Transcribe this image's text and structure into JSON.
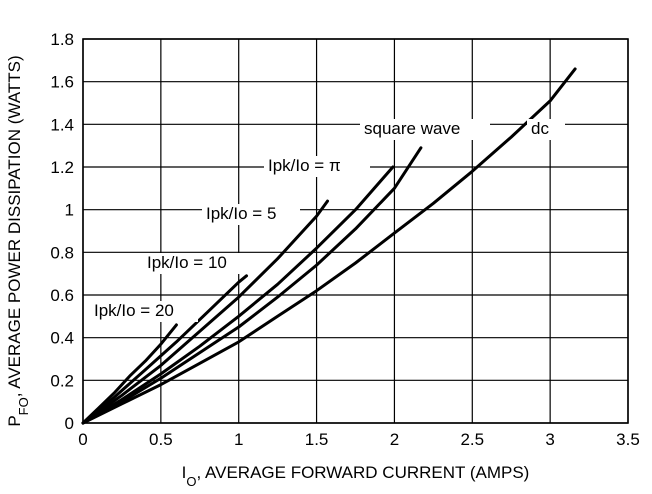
{
  "chart_data": {
    "type": "line",
    "title": "",
    "xlabel": {
      "main": "I",
      "sub": "O",
      "rest": ", AVERAGE FORWARD CURRENT (AMPS)"
    },
    "ylabel": {
      "main": "P",
      "sub": "FO",
      "rest": ", AVERAGE POWER DISSIPATION (WATTS)"
    },
    "xlim": [
      0,
      3.5
    ],
    "ylim": [
      0,
      1.8
    ],
    "xticks": [
      0,
      0.5,
      1,
      1.5,
      2,
      2.5,
      3,
      3.5
    ],
    "xtick_labels": [
      "0",
      "0.5",
      "1",
      "1.5",
      "2",
      "2.5",
      "3",
      "3.5"
    ],
    "yticks": [
      0,
      0.2,
      0.4,
      0.6,
      0.8,
      1.0,
      1.2,
      1.4,
      1.6,
      1.8
    ],
    "ytick_labels": [
      "0",
      "0.2",
      "0.4",
      "0.6",
      "0.8",
      "1",
      "1.2",
      "1.4",
      "1.6",
      "1.8"
    ],
    "grid": true,
    "series": [
      {
        "name": "Ipk/Io = 20",
        "x": [
          0,
          0.1,
          0.2,
          0.3,
          0.4,
          0.5,
          0.6
        ],
        "y": [
          0,
          0.07,
          0.14,
          0.22,
          0.29,
          0.37,
          0.46
        ]
      },
      {
        "name": "Ipk/Io = 10",
        "x": [
          0,
          0.2,
          0.4,
          0.6,
          0.8,
          1.0,
          1.05
        ],
        "y": [
          0,
          0.12,
          0.25,
          0.38,
          0.52,
          0.66,
          0.69
        ]
      },
      {
        "name": "Ipk/Io = 5",
        "x": [
          0,
          0.25,
          0.5,
          0.75,
          1.0,
          1.25,
          1.5,
          1.57
        ],
        "y": [
          0,
          0.13,
          0.27,
          0.43,
          0.59,
          0.77,
          0.97,
          1.04
        ]
      },
      {
        "name": "Ipk/Io = π",
        "x": [
          0,
          0.25,
          0.5,
          0.75,
          1.0,
          1.25,
          1.5,
          1.75,
          1.99
        ],
        "y": [
          0,
          0.11,
          0.23,
          0.36,
          0.5,
          0.65,
          0.82,
          1.0,
          1.2
        ]
      },
      {
        "name": "square wave",
        "x": [
          0,
          0.25,
          0.5,
          0.75,
          1.0,
          1.25,
          1.5,
          1.75,
          2.0,
          2.17
        ],
        "y": [
          0,
          0.1,
          0.21,
          0.33,
          0.45,
          0.59,
          0.74,
          0.91,
          1.1,
          1.29
        ]
      },
      {
        "name": "dc",
        "x": [
          0,
          0.25,
          0.5,
          0.75,
          1.0,
          1.25,
          1.5,
          1.75,
          2.0,
          2.25,
          2.5,
          2.75,
          3.0,
          3.16
        ],
        "y": [
          0,
          0.09,
          0.18,
          0.28,
          0.38,
          0.5,
          0.62,
          0.75,
          0.89,
          1.03,
          1.18,
          1.34,
          1.51,
          1.66
        ]
      }
    ],
    "annotations": [
      {
        "text": "Ipk/Io = 20"
      },
      {
        "text": "Ipk/Io = 10"
      },
      {
        "text": "Ipk/Io = 5"
      },
      {
        "text": "Ipk/Io = π"
      },
      {
        "text": "square wave"
      },
      {
        "text": "dc"
      }
    ]
  }
}
